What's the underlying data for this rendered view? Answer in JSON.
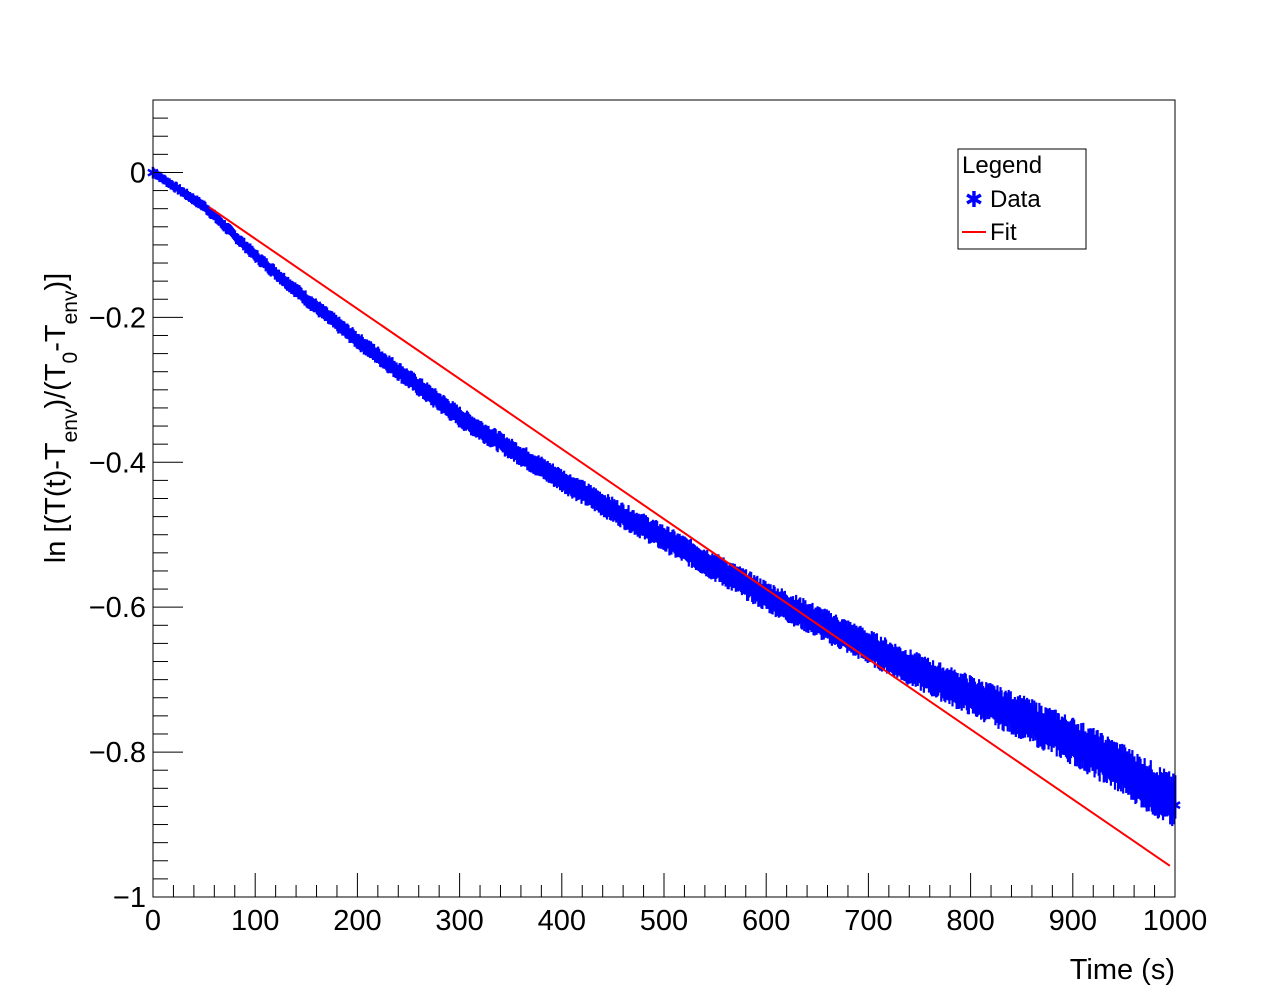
{
  "chart_data": {
    "type": "scatter",
    "xlabel": "Time (s)",
    "ylabel": {
      "parts": [
        {
          "text": "ln [(T(t)-T",
          "shift": "base"
        },
        {
          "text": "env",
          "shift": "sub"
        },
        {
          "text": ")/(T",
          "shift": "base"
        },
        {
          "text": "0",
          "shift": "sub"
        },
        {
          "text": "-T",
          "shift": "base"
        },
        {
          "text": "env",
          "shift": "sub"
        },
        {
          "text": ")]",
          "shift": "base"
        }
      ]
    },
    "xlim": [
      0,
      1000
    ],
    "ylim": [
      -1,
      0.1
    ],
    "x_ticks": [
      0,
      100,
      200,
      300,
      400,
      500,
      600,
      700,
      800,
      900,
      1000
    ],
    "x_tick_labels": [
      "0",
      "100",
      "200",
      "300",
      "400",
      "500",
      "600",
      "700",
      "800",
      "900",
      "1000"
    ],
    "y_ticks": [
      0,
      -0.2,
      -0.4,
      -0.6,
      -0.8,
      -1
    ],
    "y_tick_labels": [
      "0",
      "−0.2",
      "−0.4",
      "−0.6",
      "−0.8",
      "−1"
    ],
    "grid": false,
    "legend": {
      "title": "Legend",
      "placement": "top-right",
      "entries": [
        {
          "label": "Data",
          "marker": "asterisk",
          "color": "#0000ff"
        },
        {
          "label": "Fit",
          "marker": "line",
          "color": "#ff0000"
        }
      ]
    },
    "series": [
      {
        "name": "Data",
        "kind": "scatter-band",
        "color": "#0000ff",
        "x": [
          0,
          50,
          100,
          150,
          200,
          250,
          300,
          350,
          400,
          450,
          500,
          550,
          600,
          650,
          700,
          750,
          800,
          850,
          900,
          950,
          1000
        ],
        "y": [
          0,
          -0.047,
          -0.115,
          -0.175,
          -0.232,
          -0.285,
          -0.338,
          -0.382,
          -0.425,
          -0.466,
          -0.505,
          -0.545,
          -0.585,
          -0.62,
          -0.655,
          -0.69,
          -0.722,
          -0.752,
          -0.785,
          -0.825,
          -0.87
        ],
        "spread": [
          0.006,
          0.007,
          0.008,
          0.009,
          0.01,
          0.011,
          0.012,
          0.012,
          0.013,
          0.014,
          0.015,
          0.016,
          0.017,
          0.018,
          0.019,
          0.02,
          0.022,
          0.024,
          0.026,
          0.028,
          0.03
        ]
      },
      {
        "name": "Fit",
        "kind": "line",
        "color": "#ff0000",
        "x": [
          55,
          995
        ],
        "y": [
          -0.048,
          -0.957
        ]
      }
    ]
  }
}
